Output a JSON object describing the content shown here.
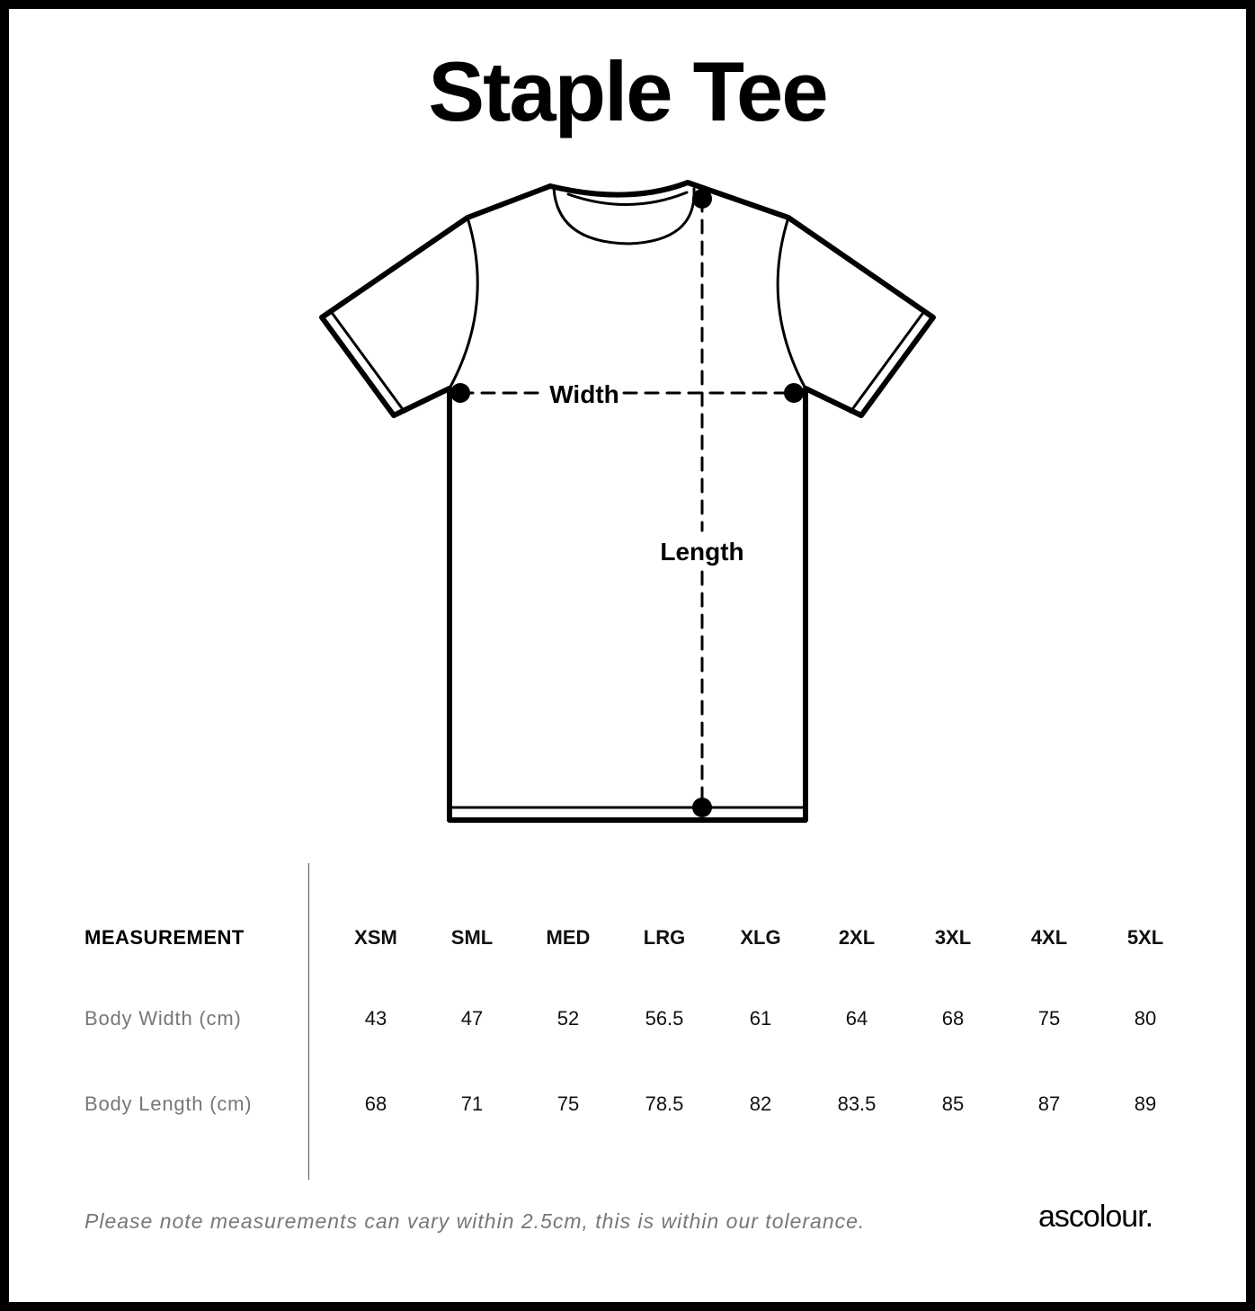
{
  "title": "Staple Tee",
  "diagram": {
    "width_label": "Width",
    "length_label": "Length"
  },
  "table": {
    "header_label": "MEASUREMENT",
    "sizes": [
      "XSM",
      "SML",
      "MED",
      "LRG",
      "XLG",
      "2XL",
      "3XL",
      "4XL",
      "5XL"
    ],
    "rows": [
      {
        "label": "Body Width (cm)",
        "values": [
          "43",
          "47",
          "52",
          "56.5",
          "61",
          "64",
          "68",
          "75",
          "80"
        ]
      },
      {
        "label": "Body Length (cm)",
        "values": [
          "68",
          "71",
          "75",
          "78.5",
          "82",
          "83.5",
          "85",
          "87",
          "89"
        ]
      }
    ]
  },
  "footer": {
    "note": "Please note measurements can vary within 2.5cm, this is within our tolerance.",
    "logo": "ascolour."
  }
}
